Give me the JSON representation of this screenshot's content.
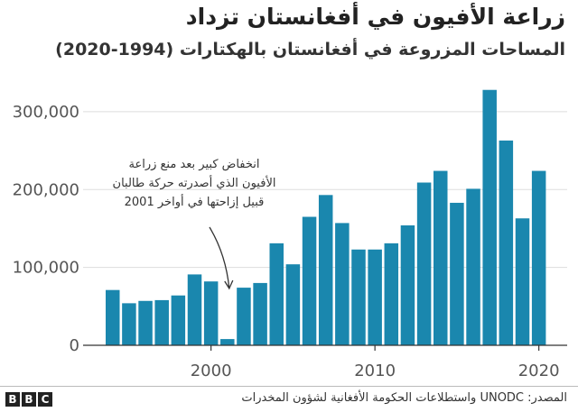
{
  "chart_data": {
    "type": "bar",
    "title": "زراعة الأفيون في أفغانستان تزداد",
    "subtitle": "المساحات المزروعة في أفغانستان بالهكتارات (1994-2020)",
    "x": [
      1994,
      1995,
      1996,
      1997,
      1998,
      1999,
      2000,
      2001,
      2002,
      2003,
      2004,
      2005,
      2006,
      2007,
      2008,
      2009,
      2010,
      2011,
      2012,
      2013,
      2014,
      2015,
      2016,
      2017,
      2018,
      2019,
      2020
    ],
    "values": [
      71000,
      54000,
      57000,
      58000,
      64000,
      91000,
      82000,
      8000,
      74000,
      80000,
      131000,
      104000,
      165000,
      193000,
      157000,
      123000,
      123000,
      131000,
      154000,
      209000,
      224000,
      183000,
      201000,
      328000,
      263000,
      163000,
      224000
    ],
    "ylim": [
      0,
      330000
    ],
    "yticks": [
      0,
      100000,
      200000,
      300000
    ],
    "ytick_labels": [
      "0",
      "100,000",
      "200,000",
      "300,000"
    ],
    "xticks": [
      2000,
      2010,
      2020
    ],
    "xtick_labels": [
      "2000",
      "2010",
      "2020"
    ],
    "grid": true,
    "bar_color": "#1a87ae",
    "annotation": {
      "lines": [
        "انخفاض كبير بعد منع زراعة",
        "الأفيون الذي أصدرته حركة طالبان",
        "قبيل إزاحتها في أواخر 2001"
      ],
      "year": 2001
    }
  },
  "footer": {
    "logo_letters": [
      "B",
      "B",
      "C"
    ],
    "source": "المصدر: UNODC واستطلاعات الحكومة الأفغانية لشؤون المخدرات"
  }
}
